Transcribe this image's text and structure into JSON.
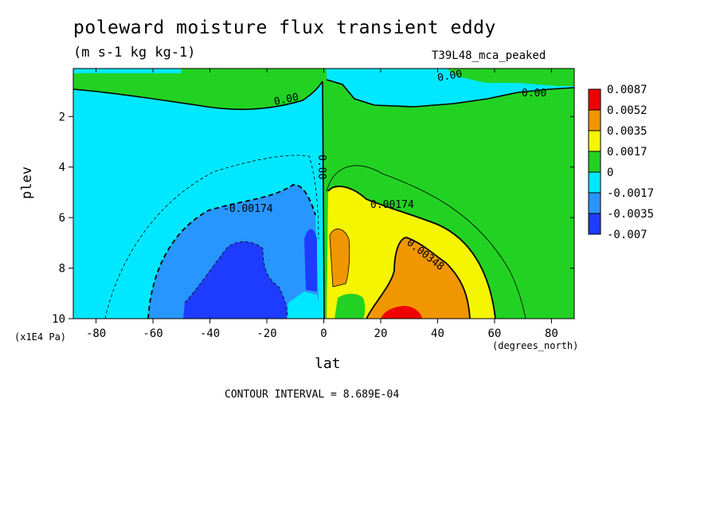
{
  "header": {
    "title": "poleward moisture flux transient eddy",
    "units": "(m s-1 kg kg-1)",
    "experiment": "T39L48_mca_peaked"
  },
  "axes": {
    "y_label": "plev",
    "y_units": "(x1E4 Pa)",
    "x_label": "lat",
    "x_units": "(degrees_north)"
  },
  "footer": {
    "interval": "CONTOUR INTERVAL = 8.689E-04"
  },
  "chart_data": {
    "type": "heatmap",
    "title": "poleward moisture flux transient eddy",
    "subtitle": "(m s-1 kg kg-1)",
    "xlabel": "lat",
    "ylabel": "plev",
    "xlim": [
      -88,
      88
    ],
    "ylim": [
      10,
      0.1
    ],
    "x_ticks": [
      -80,
      -60,
      -40,
      -20,
      0,
      20,
      40,
      60,
      80
    ],
    "x_tick_labels": [
      "-80",
      "-60",
      "-40",
      "-20",
      "0",
      "20",
      "40",
      "60",
      "80"
    ],
    "y_ticks": [
      2,
      4,
      6,
      8,
      10
    ],
    "y_tick_labels": [
      "2",
      "4",
      "6",
      "8",
      "10"
    ],
    "colorbar": {
      "levels": [
        "0.0087",
        "0.0052",
        "0.0035",
        "0.0017",
        "0",
        "-0.0017",
        "-0.0035",
        "-0.007"
      ],
      "colors": [
        "#f00000",
        "#f09600",
        "#f5f500",
        "#22d222",
        "#00e8ff",
        "#2896ff",
        "#1e3cff"
      ]
    },
    "contour_labels": [
      "0.00",
      "0.00",
      "0.00",
      "0.00",
      "-0.00174",
      "0.00174",
      "0.00348"
    ],
    "contour_interval": "8.689E-04"
  }
}
